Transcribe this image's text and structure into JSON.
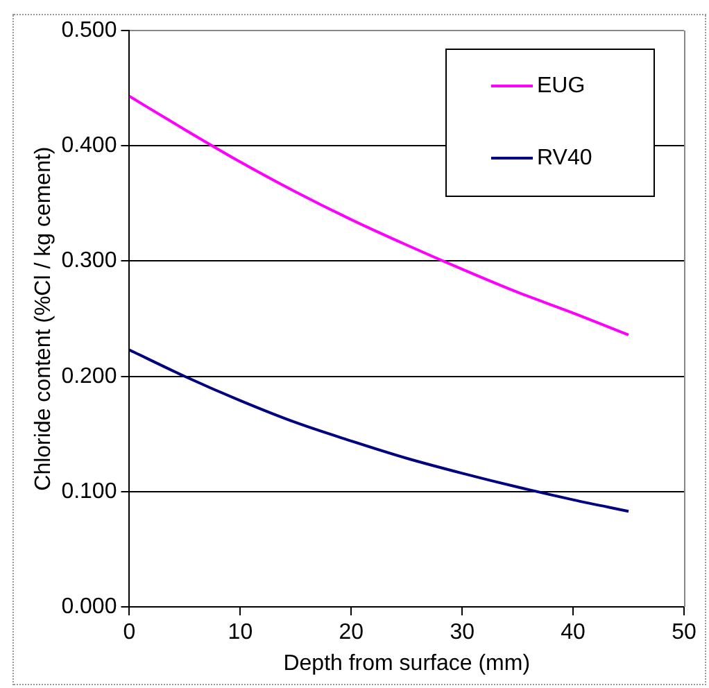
{
  "chart_data": {
    "type": "line",
    "xlabel": "Depth from surface (mm)",
    "ylabel": "Chloride content (%Cl / kg cement)",
    "x": [
      0,
      5,
      10,
      15,
      20,
      25,
      30,
      35,
      40,
      45
    ],
    "series": [
      {
        "name": "EUG",
        "color": "#ff00ff",
        "values": [
          0.443,
          0.414,
          0.386,
          0.36,
          0.336,
          0.314,
          0.293,
          0.273,
          0.255,
          0.236
        ]
      },
      {
        "name": "RV40",
        "color": "#000080",
        "values": [
          0.223,
          0.2,
          0.179,
          0.16,
          0.144,
          0.129,
          0.116,
          0.104,
          0.093,
          0.083
        ]
      }
    ],
    "xlim": [
      0,
      50
    ],
    "xticks": [
      0,
      10,
      20,
      30,
      40,
      50
    ],
    "ylim": [
      0,
      0.5
    ],
    "yticks": [
      {
        "value": 0,
        "label": "0.000"
      },
      {
        "value": 0.1,
        "label": "0.100"
      },
      {
        "value": 0.2,
        "label": "0.200"
      },
      {
        "value": 0.3,
        "label": "0.300"
      },
      {
        "value": 0.4,
        "label": "0.400"
      },
      {
        "value": 0.5,
        "label": "0.500"
      }
    ],
    "grid": "y",
    "legend": "top right",
    "marker": "none",
    "line_style": "solid"
  }
}
